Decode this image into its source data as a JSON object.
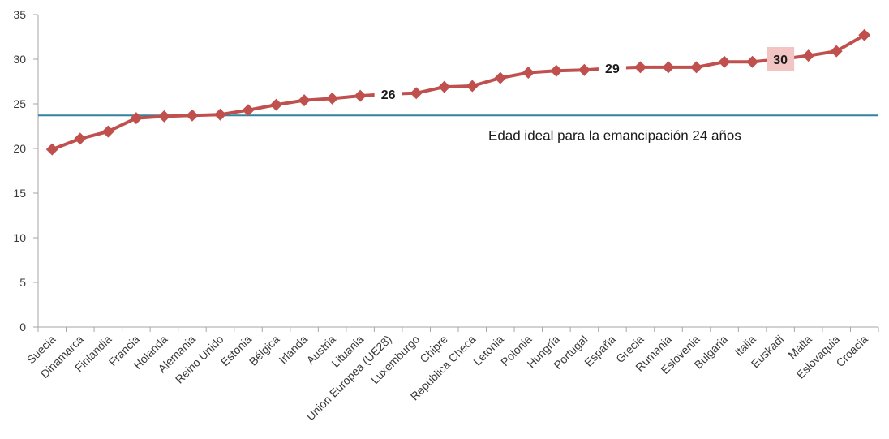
{
  "chart_data": {
    "type": "line",
    "ylim": [
      0,
      35
    ],
    "yticks": [
      0,
      5,
      10,
      15,
      20,
      25,
      30,
      35
    ],
    "categories": [
      "Suecia",
      "Dinamarca",
      "Finlandia",
      "Francia",
      "Holanda",
      "Alemania",
      "Reino Unido",
      "Estonia",
      "Bélgica",
      "Irlanda",
      "Austria",
      "Lituania",
      "Union Europea (UE28)",
      "Luxemburgo",
      "Chipre",
      "República Checa",
      "Letonia",
      "Polonia",
      "Hungría",
      "Portugal",
      "España",
      "Grecia",
      "Rumania",
      "Eslovenia",
      "Bulgaria",
      "Italia",
      "Euskadi",
      "Malta",
      "Eslovaquia",
      "Croacia"
    ],
    "values": [
      19.9,
      21.1,
      21.9,
      23.4,
      23.6,
      23.7,
      23.8,
      24.3,
      24.9,
      25.4,
      25.6,
      25.9,
      26.1,
      26.2,
      26.9,
      27.0,
      27.9,
      28.5,
      28.7,
      28.8,
      29.0,
      29.1,
      29.1,
      29.1,
      29.7,
      29.7,
      30.0,
      30.4,
      30.9,
      32.7
    ],
    "series_color": "#c0504d",
    "reference_line": {
      "value": 23.7,
      "label": "Edad ideal para la emancipación 24 años",
      "color": "#31849b"
    },
    "data_labels": [
      {
        "category": "Union Europea (UE28)",
        "text": "26",
        "highlight": false
      },
      {
        "category": "España",
        "text": "29",
        "highlight": false
      },
      {
        "category": "Euskadi",
        "text": "30",
        "highlight": true,
        "highlight_color": "#f2c4c4"
      }
    ],
    "grid": false,
    "legend": "none"
  }
}
